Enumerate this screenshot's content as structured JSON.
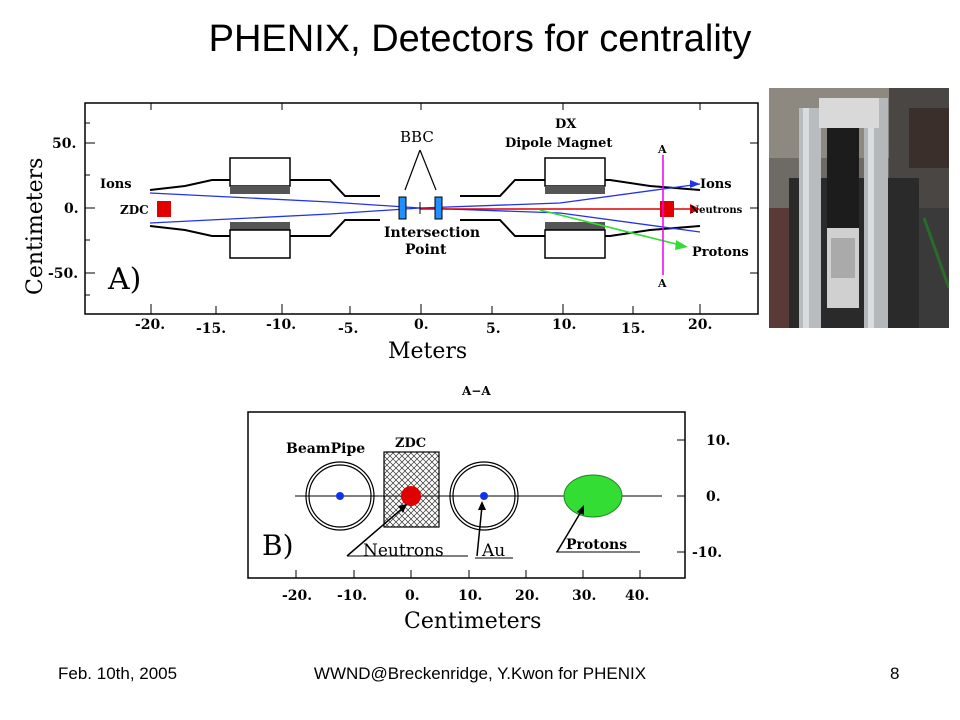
{
  "slide": {
    "title": "PHENIX, Detectors for centrality",
    "footer_left": "Feb. 10th, 2005",
    "footer_center": "WWND@Breckenridge, Y.Kwon for PHENIX",
    "footer_right": "8"
  },
  "diagram_a": {
    "panel_label": "A)",
    "bbc_label": "BBC",
    "dx_label": "DX",
    "dipole_label": "Dipole  Magnet",
    "section_mark_top": "A",
    "section_mark_bottom": "A",
    "ions_left": "Ions",
    "ions_right": "Ions",
    "zdc_label": "ZDC",
    "neutrons_label": "Neutrons",
    "protons_label": "Protons",
    "intersection_line1": "Intersection",
    "intersection_line2": "Point",
    "y_axis_title": "Centimeters",
    "x_axis_title": "Meters",
    "y_ticks": [
      "50.",
      "0.",
      "-50."
    ],
    "x_ticks_upper": [
      "-20.",
      "-10.",
      "0.",
      "10.",
      "20."
    ],
    "x_ticks_lower": [
      "-15.",
      "-5.",
      "5.",
      "15."
    ]
  },
  "diagram_b": {
    "section_title": "A−A",
    "panel_label": "B)",
    "beampipe_label": "BeamPipe",
    "zdc_label": "ZDC",
    "neutrons_label": "Neutrons",
    "au_label": "Au",
    "protons_label": "Protons",
    "y_ticks": [
      "10.",
      "0.",
      "-10."
    ],
    "x_ticks": [
      "-20.",
      "-10.",
      "0.",
      "10.",
      "20.",
      "30.",
      "40."
    ],
    "x_axis_title": "Centimeters"
  },
  "colors": {
    "neutron_red": "#e00000",
    "proton_green": "#33dd33",
    "ion_blue": "#2233ee",
    "bbc_blue": "#1e90ff",
    "marker_magenta": "#ee00ee"
  }
}
